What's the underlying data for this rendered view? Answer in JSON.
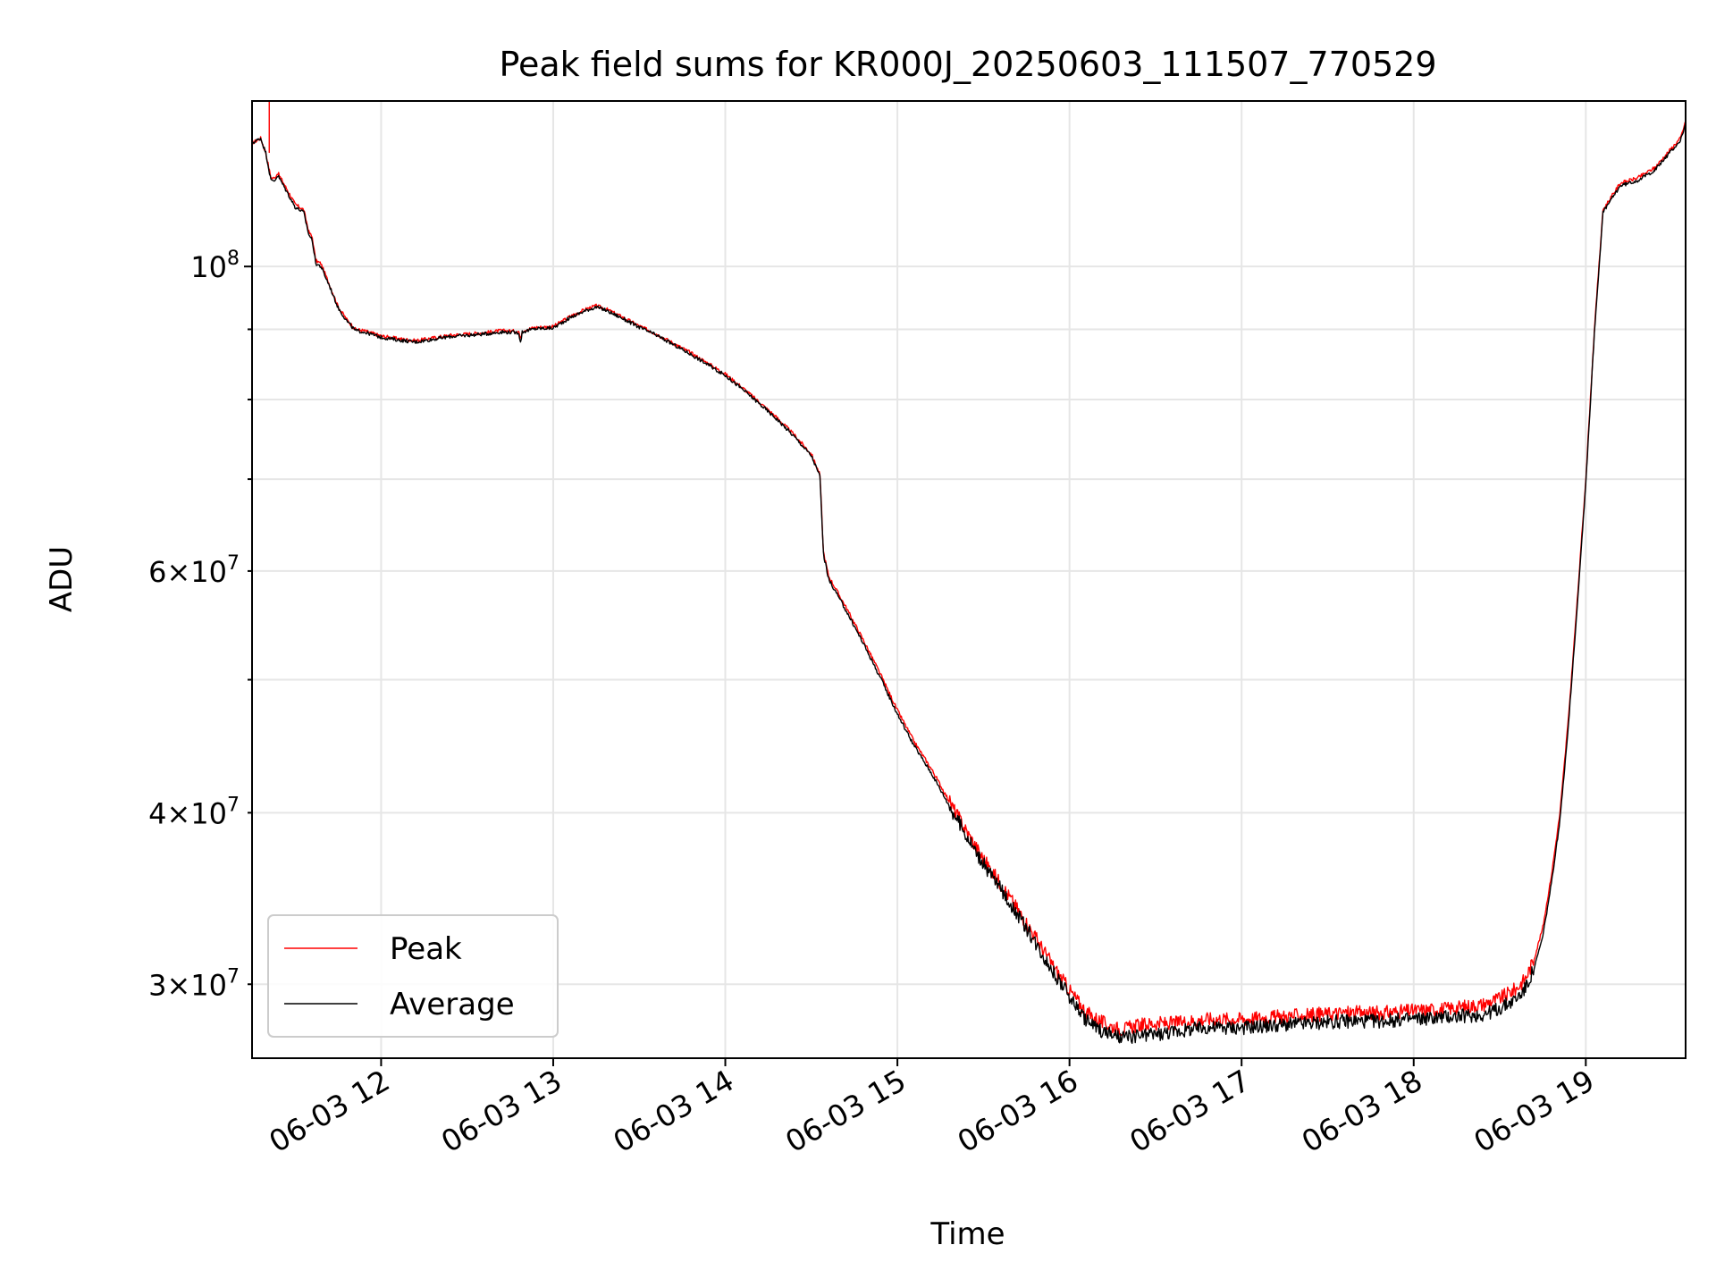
{
  "chart_data": {
    "type": "line",
    "title": "Peak field sums for KR000J_20250603_111507_770529",
    "xlabel": "Time",
    "ylabel": "ADU",
    "x_unit": "hour of 2025-06-03",
    "xlim": [
      11.25,
      19.58
    ],
    "ylim": [
      26500000,
      132000000
    ],
    "y_scale": "log",
    "grid": true,
    "legend_position": "lower-left",
    "x_ticks": [
      {
        "value": 12,
        "label": "06-03 12"
      },
      {
        "value": 13,
        "label": "06-03 13"
      },
      {
        "value": 14,
        "label": "06-03 14"
      },
      {
        "value": 15,
        "label": "06-03 15"
      },
      {
        "value": 16,
        "label": "06-03 16"
      },
      {
        "value": 17,
        "label": "06-03 17"
      },
      {
        "value": 18,
        "label": "06-03 18"
      },
      {
        "value": 19,
        "label": "06-03 19"
      }
    ],
    "y_major_tick": {
      "value": 100000000,
      "mantissa": "",
      "base": "10",
      "exp": "8"
    },
    "y_minor_ticks": [
      {
        "value": 30000000,
        "mantissa": "3×",
        "base": "10",
        "exp": "7"
      },
      {
        "value": 40000000,
        "mantissa": "4×",
        "base": "10",
        "exp": "7"
      },
      {
        "value": 60000000,
        "mantissa": "6×",
        "base": "10",
        "exp": "7"
      }
    ],
    "y_unlabeled_minor_ticks": [
      50000000,
      70000000,
      80000000,
      90000000
    ],
    "series": [
      {
        "name": "Peak",
        "color": "#ff0000",
        "x": [
          11.25,
          11.3,
          11.33,
          11.36,
          11.38,
          11.4,
          11.45,
          11.5,
          11.55,
          11.58,
          11.6,
          11.62,
          11.65,
          11.7,
          11.75,
          11.8,
          11.85,
          11.9,
          12.0,
          12.1,
          12.2,
          12.3,
          12.4,
          12.5,
          12.6,
          12.7,
          12.8,
          12.81,
          12.82,
          12.85,
          12.9,
          13.0,
          13.05,
          13.1,
          13.2,
          13.25,
          13.3,
          13.4,
          13.5,
          13.6,
          13.7,
          13.8,
          13.9,
          14.0,
          14.1,
          14.2,
          14.3,
          14.4,
          14.5,
          14.55,
          14.57,
          14.6,
          14.7,
          14.8,
          14.9,
          15.0,
          15.1,
          15.2,
          15.3,
          15.4,
          15.5,
          15.6,
          15.7,
          15.8,
          15.9,
          16.0,
          16.1,
          16.2,
          16.3,
          16.4,
          16.5,
          16.6,
          16.8,
          17.0,
          17.2,
          17.4,
          17.6,
          17.8,
          18.0,
          18.2,
          18.4,
          18.5,
          18.6,
          18.65,
          18.7,
          18.75,
          18.8,
          18.85,
          18.9,
          18.95,
          19.0,
          19.05,
          19.1,
          19.2,
          19.3,
          19.4,
          19.45,
          19.5,
          19.55,
          19.58
        ],
        "y": [
          123000000,
          124000000,
          121000000,
          116000000,
          116000000,
          117000000,
          114000000,
          111000000,
          110000000,
          106000000,
          105000000,
          101000000,
          100500000,
          97000000,
          93500000,
          91500000,
          90000000,
          89800000,
          89000000,
          88600000,
          88300000,
          88700000,
          89100000,
          89300000,
          89500000,
          89800000,
          89700000,
          88500000,
          89800000,
          90000000,
          90300000,
          90400000,
          91200000,
          92000000,
          93200000,
          93600000,
          93200000,
          91900000,
          90500000,
          89300000,
          87900000,
          86500000,
          85000000,
          83500000,
          81600000,
          79600000,
          77600000,
          75400000,
          73000000,
          70500000,
          62000000,
          59500000,
          56500000,
          53500000,
          50500000,
          47500000,
          45000000,
          43000000,
          40800000,
          38800000,
          37000000,
          35500000,
          34000000,
          32500000,
          31000000,
          29700000,
          28600000,
          28100000,
          27800000,
          28000000,
          28100000,
          28100000,
          28300000,
          28300000,
          28400000,
          28500000,
          28600000,
          28600000,
          28700000,
          28800000,
          29000000,
          29300000,
          29800000,
          30300000,
          31300000,
          33000000,
          36000000,
          40000000,
          47000000,
          57000000,
          70000000,
          90000000,
          110000000,
          115000000,
          116000000,
          118000000,
          120000000,
          122000000,
          124000000,
          127500000
        ]
      },
      {
        "name": "Average",
        "color": "#000000",
        "x": [
          11.25,
          11.3,
          11.33,
          11.36,
          11.38,
          11.4,
          11.45,
          11.5,
          11.55,
          11.58,
          11.6,
          11.62,
          11.65,
          11.7,
          11.75,
          11.8,
          11.85,
          11.9,
          12.0,
          12.1,
          12.2,
          12.3,
          12.4,
          12.5,
          12.6,
          12.7,
          12.8,
          12.81,
          12.82,
          12.85,
          12.9,
          13.0,
          13.05,
          13.1,
          13.2,
          13.25,
          13.3,
          13.4,
          13.5,
          13.6,
          13.7,
          13.8,
          13.9,
          14.0,
          14.1,
          14.2,
          14.3,
          14.4,
          14.5,
          14.55,
          14.57,
          14.6,
          14.7,
          14.8,
          14.9,
          15.0,
          15.1,
          15.2,
          15.3,
          15.4,
          15.5,
          15.6,
          15.7,
          15.8,
          15.9,
          16.0,
          16.1,
          16.2,
          16.3,
          16.4,
          16.5,
          16.6,
          16.8,
          17.0,
          17.2,
          17.4,
          17.6,
          17.8,
          18.0,
          18.2,
          18.4,
          18.5,
          18.6,
          18.65,
          18.7,
          18.75,
          18.8,
          18.85,
          18.9,
          18.95,
          19.0,
          19.05,
          19.1,
          19.2,
          19.3,
          19.4,
          19.45,
          19.5,
          19.55,
          19.58
        ],
        "y": [
          123000000,
          124000000,
          121000000,
          115500000,
          115500000,
          116500000,
          113500000,
          110500000,
          109500000,
          105500000,
          104500000,
          100500000,
          100000000,
          96800000,
          93300000,
          91300000,
          89800000,
          89600000,
          88800000,
          88400000,
          88100000,
          88500000,
          88900000,
          89100000,
          89300000,
          89600000,
          89500000,
          88000000,
          89600000,
          89800000,
          90100000,
          90200000,
          91000000,
          91800000,
          93000000,
          93400000,
          93000000,
          91700000,
          90300000,
          89100000,
          87700000,
          86300000,
          84800000,
          83300000,
          81400000,
          79400000,
          77400000,
          75200000,
          72800000,
          70300000,
          61800000,
          59200000,
          56200000,
          53200000,
          50200000,
          47200000,
          44700000,
          42700000,
          40500000,
          38500000,
          36700000,
          35200000,
          33700000,
          32200000,
          30700000,
          29400000,
          28200000,
          27700000,
          27400000,
          27500000,
          27600000,
          27700000,
          27900000,
          27900000,
          28000000,
          28100000,
          28200000,
          28200000,
          28300000,
          28400000,
          28500000,
          28800000,
          29300000,
          29800000,
          30800000,
          32500000,
          35500000,
          39500000,
          46500000,
          56500000,
          69500000,
          89500000,
          109500000,
          114500000,
          115500000,
          117500000,
          119500000,
          121500000,
          123500000,
          127000000
        ]
      }
    ]
  }
}
